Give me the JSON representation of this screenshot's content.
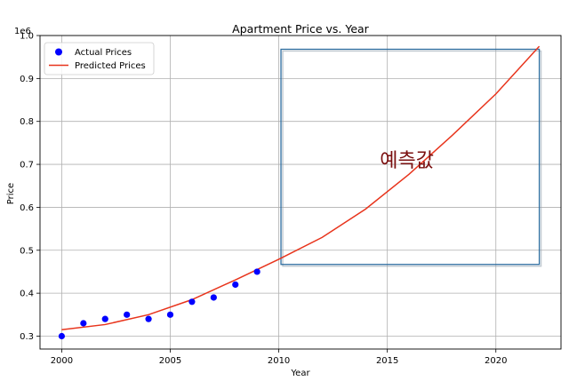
{
  "chart_data": {
    "type": "scatter+line",
    "title": "Apartment Price vs. Year",
    "xlabel": "Year",
    "ylabel": "Price",
    "y_offset_label": "1e6",
    "xlim": [
      1999,
      2023
    ],
    "ylim": [
      0.27,
      1.0
    ],
    "xticks": [
      2000,
      2005,
      2010,
      2015,
      2020
    ],
    "yticks": [
      0.3,
      0.4,
      0.5,
      0.6,
      0.7,
      0.8,
      0.9,
      1.0
    ],
    "ytick_labels": [
      "0.3",
      "0.4",
      "0.5",
      "0.6",
      "0.7",
      "0.8",
      "0.9",
      "1.0"
    ],
    "grid": true,
    "legend_position": "top-left",
    "series": [
      {
        "name": "Actual Prices",
        "kind": "scatter",
        "color": "#0000ff",
        "x": [
          2000,
          2001,
          2002,
          2003,
          2004,
          2005,
          2006,
          2007,
          2008,
          2009
        ],
        "y": [
          0.3,
          0.33,
          0.34,
          0.35,
          0.34,
          0.35,
          0.38,
          0.39,
          0.42,
          0.45
        ]
      },
      {
        "name": "Predicted Prices",
        "kind": "line",
        "color": "#e8341c",
        "x": [
          2000,
          2002,
          2004,
          2006,
          2008,
          2010,
          2012,
          2014,
          2016,
          2018,
          2020,
          2022
        ],
        "y": [
          0.315,
          0.327,
          0.35,
          0.385,
          0.431,
          0.479,
          0.53,
          0.596,
          0.677,
          0.768,
          0.864,
          0.975
        ]
      }
    ],
    "annotations": [
      {
        "kind": "rectangle",
        "x0": 2010.1,
        "x1": 2022.0,
        "y0": 0.467,
        "y1": 0.968,
        "color": "#2e6ea0"
      },
      {
        "kind": "text",
        "text": "예측값",
        "x": 2015.9,
        "y": 0.71,
        "color": "#7a0f0f"
      }
    ]
  }
}
